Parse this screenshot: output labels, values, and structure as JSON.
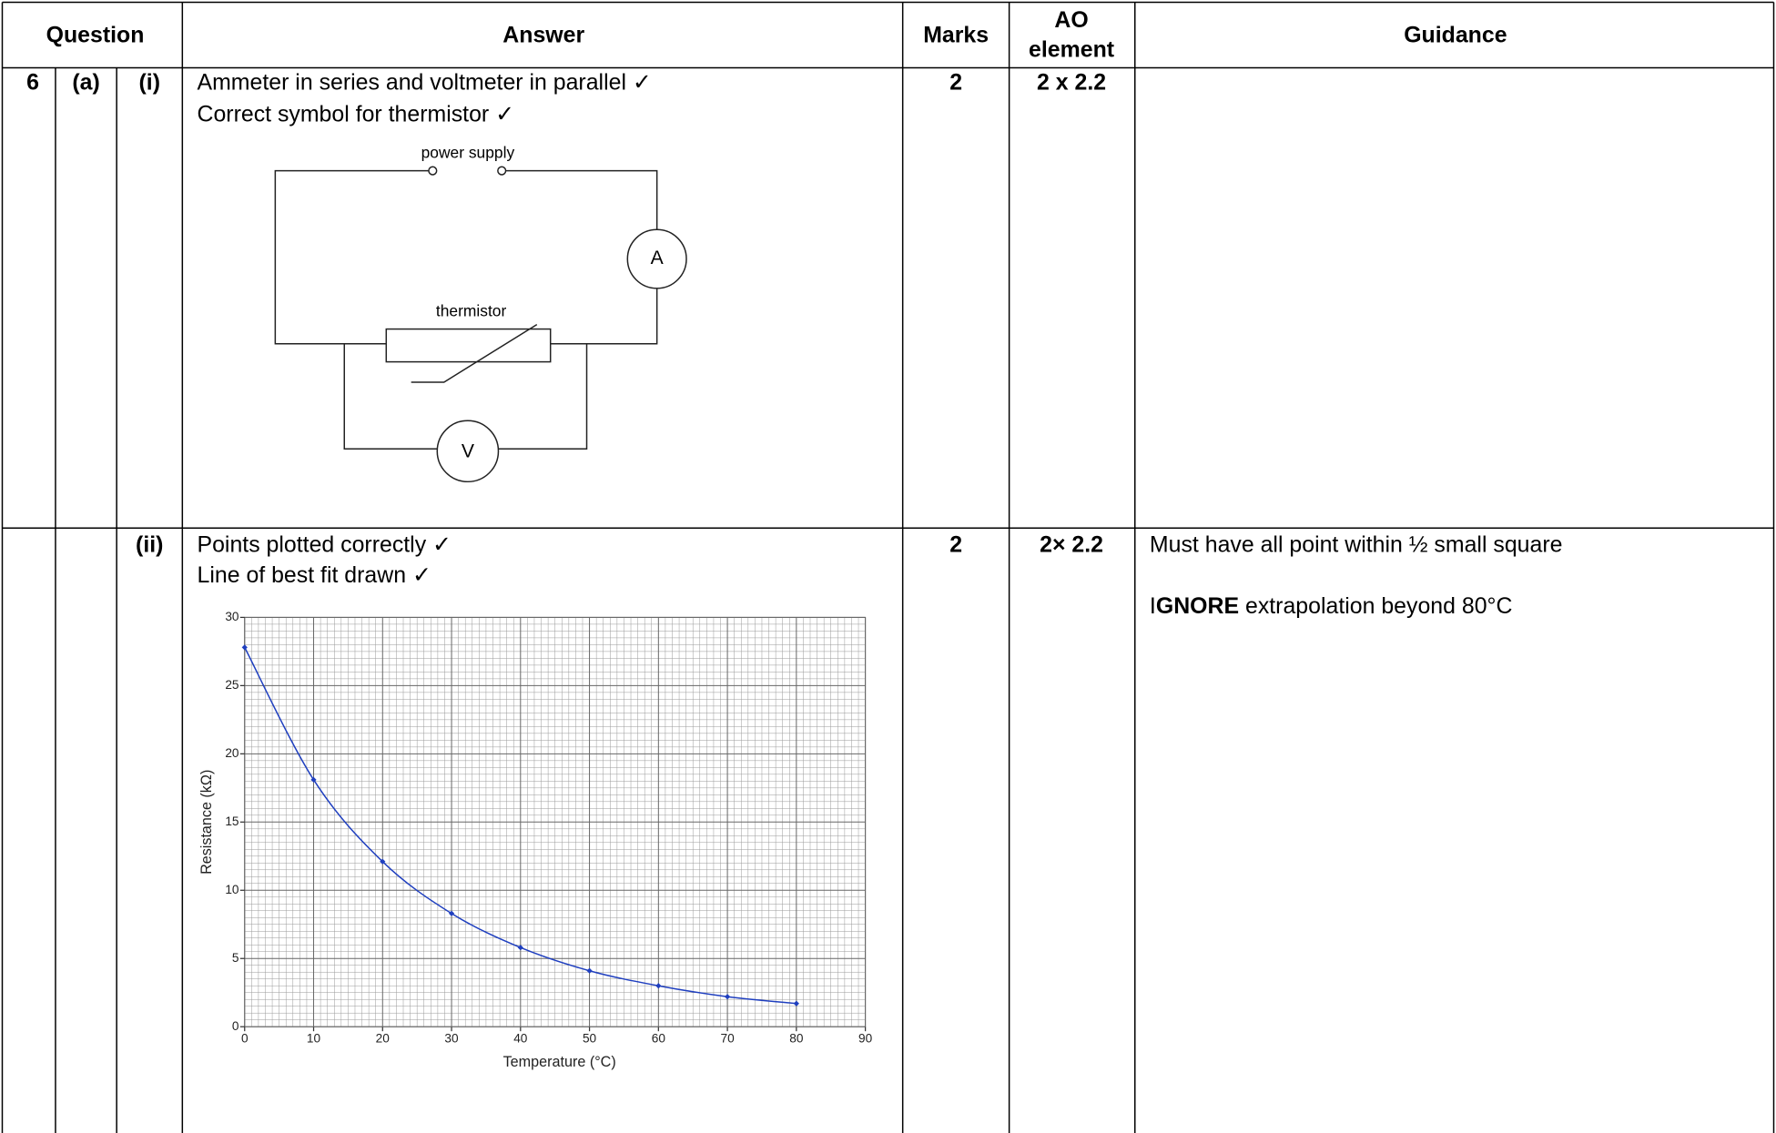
{
  "table": {
    "headers": {
      "question": "Question",
      "answer": "Answer",
      "marks": "Marks",
      "ao": [
        "AO",
        "element"
      ],
      "guidance": "Guidance"
    },
    "rows": [
      {
        "question": "6",
        "part": "(a)",
        "subpart": "(i)",
        "answer": [
          "Ammeter in series and voltmeter in parallel ✓",
          "Correct symbol for thermistor ✓"
        ],
        "marks": "2",
        "ao": "2 x 2.2"
      },
      {
        "subpart": "(ii)",
        "answer": [
          "Points plotted correctly ✓",
          "Line of best fit drawn ✓"
        ],
        "marks": "2",
        "ao": "2× 2.2",
        "guidance": "Must have all point within ½ small square",
        "guidance_note": {
          "prefix": "I",
          "bold": "GNORE",
          "text": " extrapolation beyond 80°C"
        }
      }
    ]
  },
  "circuit": {
    "labels": {
      "power_supply": "power supply",
      "ammeter": "A",
      "thermistor": "thermistor",
      "voltmeter": "V"
    }
  },
  "chart_data": {
    "type": "line",
    "x": [
      0,
      10,
      20,
      30,
      40,
      50,
      60,
      70,
      80
    ],
    "values": [
      27.8,
      18.1,
      12.1,
      8.3,
      5.8,
      4.1,
      3.0,
      2.2,
      1.7
    ],
    "color": "#1f3fbf",
    "xlabel": "Temperature (°C)",
    "ylabel": "Resistance (kΩ)",
    "xlim": [
      0,
      90
    ],
    "ylim": [
      0,
      30
    ],
    "xticks": [
      0,
      10,
      20,
      30,
      40,
      50,
      60,
      70,
      80,
      90
    ],
    "yticks": [
      0,
      5,
      10,
      15,
      20,
      25,
      30
    ],
    "grid": true
  }
}
